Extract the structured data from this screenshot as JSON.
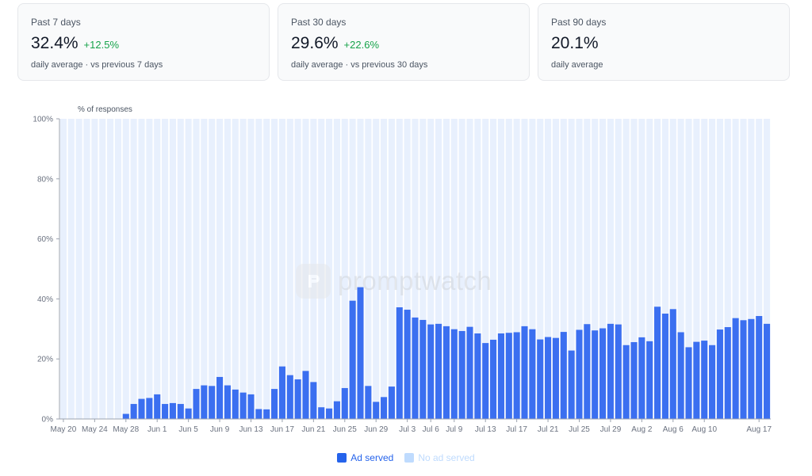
{
  "cards": [
    {
      "label": "Past 7 days",
      "value": "32.4%",
      "delta": "+12.5%",
      "sub": "daily average · vs previous 7 days"
    },
    {
      "label": "Past 30 days",
      "value": "29.6%",
      "delta": "+22.6%",
      "sub": "daily average · vs previous 30 days"
    },
    {
      "label": "Past 90 days",
      "value": "20.1%",
      "delta": "",
      "sub": "daily average"
    }
  ],
  "watermark": "promptwatch",
  "colors": {
    "ad_served": "#3b6ff0",
    "no_ad_served": "#e8f0fd",
    "gain": "#16a34a"
  },
  "chart_data": {
    "type": "bar",
    "stacked": true,
    "ylabel": "% of responses",
    "ylim": [
      0,
      100
    ],
    "yticks": [
      "0%",
      "20%",
      "40%",
      "60%",
      "80%",
      "100%"
    ],
    "x_tick_labels": [
      "May 20",
      "May 24",
      "May 28",
      "Jun 1",
      "Jun 5",
      "Jun 9",
      "Jun 13",
      "Jun 17",
      "Jun 21",
      "Jun 25",
      "Jun 29",
      "Jul 3",
      "Jul 6",
      "Jul 9",
      "Jul 13",
      "Jul 17",
      "Jul 21",
      "Jul 25",
      "Jul 29",
      "Aug 2",
      "Aug 6",
      "Aug 10",
      "Aug 17"
    ],
    "x_tick_index": [
      0,
      4,
      8,
      12,
      16,
      20,
      24,
      28,
      32,
      36,
      40,
      44,
      47,
      50,
      54,
      58,
      62,
      66,
      70,
      74,
      78,
      82,
      89
    ],
    "legend": [
      {
        "name": "Ad served",
        "color": "#3b6ff0"
      },
      {
        "name": "No ad served",
        "color": "#bfdbfe"
      }
    ],
    "legend_position": "bottom-center",
    "series": [
      {
        "name": "Ad served",
        "values": [
          0,
          0,
          0,
          0,
          0,
          0,
          0,
          0,
          1.7,
          5.0,
          6.7,
          7.0,
          8.2,
          5.0,
          5.3,
          5.0,
          3.5,
          10.0,
          11.2,
          11.0,
          14.0,
          11.2,
          9.8,
          8.8,
          8.2,
          3.3,
          3.2,
          10.0,
          17.5,
          14.6,
          13.2,
          16.0,
          12.3,
          3.9,
          3.5,
          5.9,
          10.3,
          39.4,
          43.9,
          11.0,
          5.7,
          7.3,
          10.8,
          37.2,
          36.4,
          33.8,
          33.0,
          31.5,
          31.7,
          30.9,
          29.9,
          29.3,
          30.7,
          28.5,
          25.3,
          26.4,
          28.5,
          28.7,
          28.9,
          30.9,
          29.9,
          26.5,
          27.3,
          27.0,
          29.0,
          22.8,
          29.7,
          31.6,
          29.5,
          30.2,
          31.7,
          31.5,
          24.6,
          25.6,
          27.2,
          25.9,
          37.4,
          35.1,
          36.6,
          28.9,
          23.9,
          25.7,
          26.1,
          24.6,
          29.8,
          30.6,
          33.6,
          32.9,
          33.3,
          34.3,
          31.7
        ]
      }
    ]
  }
}
